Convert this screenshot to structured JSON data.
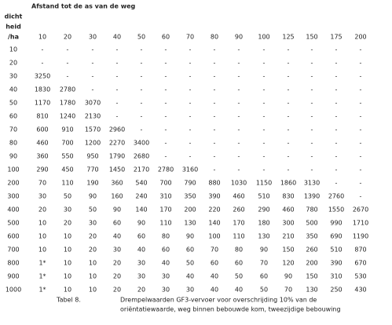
{
  "table": {
    "title": "Afstand tot de as van de weg",
    "row_header": [
      "dicht",
      "heid",
      "/ha"
    ],
    "columns": [
      "10",
      "20",
      "30",
      "40",
      "50",
      "60",
      "70",
      "80",
      "90",
      "100",
      "125",
      "150",
      "175",
      "200"
    ],
    "rows": [
      [
        "10",
        "-",
        "-",
        "-",
        "-",
        "-",
        "-",
        "-",
        "-",
        "-",
        "-",
        "-",
        "-",
        "-",
        "-"
      ],
      [
        "20",
        "-",
        "-",
        "-",
        "-",
        "-",
        "-",
        "-",
        "-",
        "-",
        "-",
        "-",
        "-",
        "-",
        "-"
      ],
      [
        "30",
        "3250",
        "-",
        "-",
        "-",
        "-",
        "-",
        "-",
        "-",
        "-",
        "-",
        "-",
        "-",
        "-",
        "-"
      ],
      [
        "40",
        "1830",
        "2780",
        "-",
        "-",
        "-",
        "-",
        "-",
        "-",
        "-",
        "-",
        "-",
        "-",
        "-",
        "-"
      ],
      [
        "50",
        "1170",
        "1780",
        "3070",
        "-",
        "-",
        "-",
        "-",
        "-",
        "-",
        "-",
        "-",
        "-",
        "-",
        "-"
      ],
      [
        "60",
        "810",
        "1240",
        "2130",
        "-",
        "-",
        "-",
        "-",
        "-",
        "-",
        "-",
        "-",
        "-",
        "-",
        "-"
      ],
      [
        "70",
        "600",
        "910",
        "1570",
        "2960",
        "-",
        "-",
        "-",
        "-",
        "-",
        "-",
        "-",
        "-",
        "-",
        "-"
      ],
      [
        "80",
        "460",
        "700",
        "1200",
        "2270",
        "3400",
        "-",
        "-",
        "-",
        "-",
        "-",
        "-",
        "-",
        "-",
        "-"
      ],
      [
        "90",
        "360",
        "550",
        "950",
        "1790",
        "2680",
        "-",
        "-",
        "-",
        "-",
        "-",
        "-",
        "-",
        "-",
        "-"
      ],
      [
        "100",
        "290",
        "450",
        "770",
        "1450",
        "2170",
        "2780",
        "3160",
        "-",
        "-",
        "-",
        "-",
        "-",
        "-",
        "-"
      ],
      [
        "200",
        "70",
        "110",
        "190",
        "360",
        "540",
        "700",
        "790",
        "880",
        "1030",
        "1150",
        "1860",
        "3130",
        "-",
        "-"
      ],
      [
        "300",
        "30",
        "50",
        "90",
        "160",
        "240",
        "310",
        "350",
        "390",
        "460",
        "510",
        "830",
        "1390",
        "2760",
        "-"
      ],
      [
        "400",
        "20",
        "30",
        "50",
        "90",
        "140",
        "170",
        "200",
        "220",
        "260",
        "290",
        "460",
        "780",
        "1550",
        "2670"
      ],
      [
        "500",
        "10",
        "20",
        "30",
        "60",
        "90",
        "110",
        "130",
        "140",
        "170",
        "180",
        "300",
        "500",
        "990",
        "1710"
      ],
      [
        "600",
        "10",
        "10",
        "20",
        "40",
        "60",
        "80",
        "90",
        "100",
        "110",
        "130",
        "210",
        "350",
        "690",
        "1190"
      ],
      [
        "700",
        "10",
        "10",
        "20",
        "30",
        "40",
        "60",
        "60",
        "70",
        "80",
        "90",
        "150",
        "260",
        "510",
        "870"
      ],
      [
        "800",
        "1*",
        "10",
        "10",
        "20",
        "30",
        "40",
        "50",
        "60",
        "60",
        "70",
        "120",
        "200",
        "390",
        "670"
      ],
      [
        "900",
        "1*",
        "10",
        "10",
        "20",
        "30",
        "30",
        "40",
        "40",
        "50",
        "60",
        "90",
        "150",
        "310",
        "530"
      ],
      [
        "1000",
        "1*",
        "10",
        "10",
        "20",
        "20",
        "30",
        "30",
        "40",
        "40",
        "50",
        "70",
        "130",
        "250",
        "430"
      ]
    ]
  },
  "caption": {
    "label": "Tabel 8.",
    "lines": [
      "Drempelwaarden GF3-vervoer voor overschrijding 10% van de",
      "oriëntatiewaarde, weg binnen bebouwde kom, tweezijdige bebouwing"
    ]
  }
}
